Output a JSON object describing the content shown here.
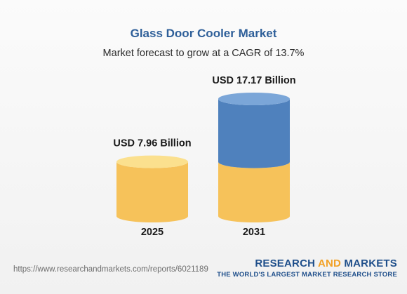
{
  "title": "Glass Door Cooler Market",
  "subtitle": "Market forecast to grow at a CAGR of 13.7%",
  "chart_data": {
    "type": "bar",
    "style": "cylinder",
    "categories": [
      "2025",
      "2031"
    ],
    "values": [
      7.96,
      17.17
    ],
    "unit": "USD Billion",
    "data_labels": [
      "USD 7.96 Billion",
      "USD 17.17 Billion"
    ],
    "colors": {
      "base": "#f6c25a",
      "base_top": "#fbe08e",
      "growth": "#4f81bd",
      "growth_top": "#7ba6d8"
    }
  },
  "footer": {
    "url": "https://www.researchandmarkets.com/reports/6021189",
    "brand_part1": "RESEARCH ",
    "brand_part2": "AND",
    "brand_part3": " MARKETS",
    "tagline": "THE WORLD'S LARGEST MARKET RESEARCH STORE"
  }
}
